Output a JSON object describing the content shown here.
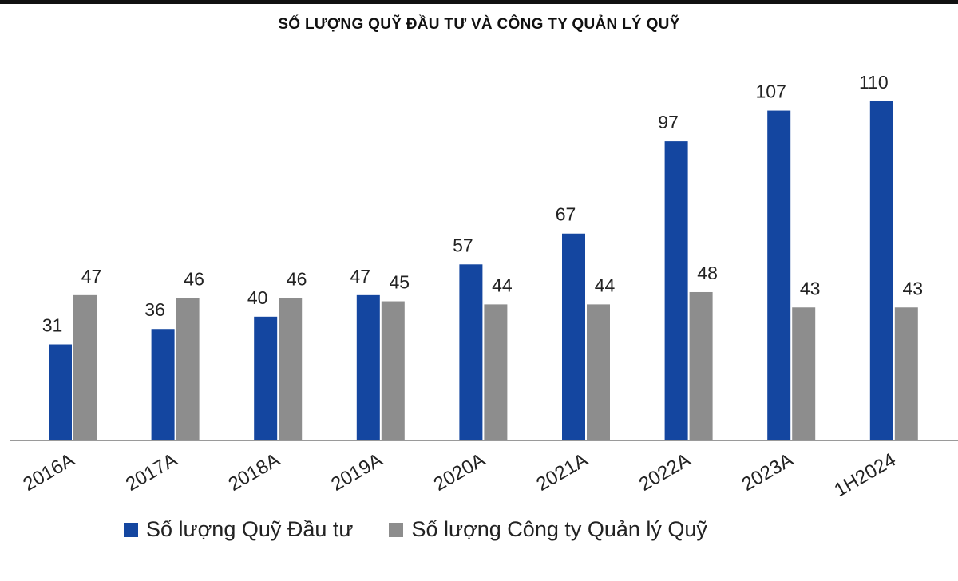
{
  "chart_data": {
    "type": "bar",
    "title": "SỐ LƯỢNG QUỸ ĐẦU TƯ VÀ CÔNG TY QUẢN LÝ QUỸ",
    "categories": [
      "2016A",
      "2017A",
      "2018A",
      "2019A",
      "2020A",
      "2021A",
      "2022A",
      "2023A",
      "1H2024"
    ],
    "series": [
      {
        "name": "Số lượng Quỹ Đầu tư",
        "color": "#1446a0",
        "values": [
          31,
          36,
          40,
          47,
          57,
          67,
          97,
          107,
          110
        ]
      },
      {
        "name": "Số lượng Công ty Quản lý Quỹ",
        "color": "#8d8d8d",
        "values": [
          47,
          46,
          46,
          45,
          44,
          44,
          48,
          43,
          43
        ]
      }
    ],
    "ylim": [
      0,
      110
    ],
    "grid": false,
    "legend_position": "bottom"
  }
}
